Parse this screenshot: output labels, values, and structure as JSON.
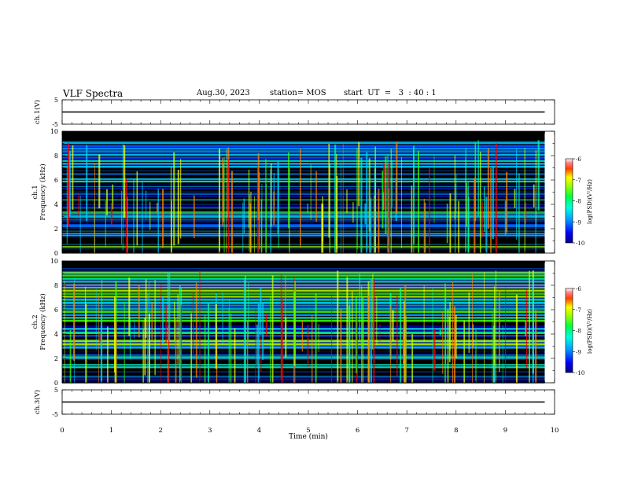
{
  "header": {
    "title": "VLF Spectra",
    "date": "Aug.30, 2023",
    "station": "station= MOS",
    "start": "start  UT  =   3  : 40 : 1"
  },
  "colors": {
    "background": "#000000",
    "colormap": [
      "#0000a0",
      "#0000ff",
      "#0060ff",
      "#00d0ff",
      "#00ffa0",
      "#40ff00",
      "#c0ff00",
      "#ffff00",
      "#ff8000",
      "#ff0000",
      "#ffffff"
    ]
  },
  "chart_data": [
    {
      "type": "line",
      "panel": "ch1-waveform",
      "ylabel": "ch.1(V)",
      "ylim": [
        -5,
        5
      ],
      "yticks": [
        "5",
        "-5"
      ],
      "xlim": [
        0,
        10
      ],
      "series": [
        {
          "x": [
            0,
            9.8
          ],
          "values": [
            0,
            0
          ]
        }
      ]
    },
    {
      "type": "heatmap",
      "panel": "ch1-spectrogram",
      "ylabel": "ch.1\nFrequency (kHz)",
      "ylim": [
        0,
        10
      ],
      "yticks": [
        "0",
        "2",
        "4",
        "6",
        "8",
        "10"
      ],
      "xlim": [
        0,
        10
      ],
      "data_extent_min": [
        0,
        9.8
      ],
      "colorbar": {
        "label": "log(PSD)(V²/Hz)",
        "ticks": [
          "-6",
          "-7",
          "-8",
          "-9",
          "-10"
        ],
        "range": [
          -10,
          -6
        ]
      },
      "bands_khz": [
        {
          "lo": 0.4,
          "hi": 0.6,
          "level": 0.55
        },
        {
          "lo": 1.4,
          "hi": 1.7,
          "level": 0.45
        },
        {
          "lo": 2.2,
          "hi": 2.4,
          "level": 0.45
        },
        {
          "lo": 2.9,
          "hi": 3.5,
          "level": 0.5
        },
        {
          "lo": 5.8,
          "hi": 6.2,
          "level": 0.45
        },
        {
          "lo": 7.0,
          "hi": 9.2,
          "level": 0.4
        }
      ]
    },
    {
      "type": "heatmap",
      "panel": "ch2-spectrogram",
      "ylabel": "ch.2\nFrequency (kHz)",
      "ylim": [
        0,
        10
      ],
      "yticks": [
        "0",
        "2",
        "4",
        "6",
        "8",
        "10"
      ],
      "xlim": [
        0,
        10
      ],
      "data_extent_min": [
        0,
        9.8
      ],
      "colorbar": {
        "label": "log(PSD)(V²/Hz)",
        "ticks": [
          "-6",
          "-7",
          "-8",
          "-9",
          "-10"
        ],
        "range": [
          -10,
          -6
        ]
      },
      "bands_khz": [
        {
          "lo": 1.2,
          "hi": 1.6,
          "level": 0.45
        },
        {
          "lo": 2.0,
          "hi": 2.4,
          "level": 0.45
        },
        {
          "lo": 2.8,
          "hi": 3.6,
          "level": 0.6
        },
        {
          "lo": 4.0,
          "hi": 4.6,
          "level": 0.5
        },
        {
          "lo": 5.0,
          "hi": 9.2,
          "level": 0.6
        }
      ]
    },
    {
      "type": "line",
      "panel": "ch3-waveform",
      "ylabel": "ch.3(V)",
      "ylim": [
        -5,
        5
      ],
      "yticks": [
        "5",
        "-5"
      ],
      "xlim": [
        0,
        10
      ],
      "xlabel": "Time  (min)",
      "xticks": [
        "0",
        "1",
        "2",
        "3",
        "4",
        "5",
        "6",
        "7",
        "8",
        "9",
        "10"
      ],
      "series": [
        {
          "x": [
            0,
            9.8
          ],
          "values": [
            0,
            0
          ]
        }
      ]
    }
  ]
}
